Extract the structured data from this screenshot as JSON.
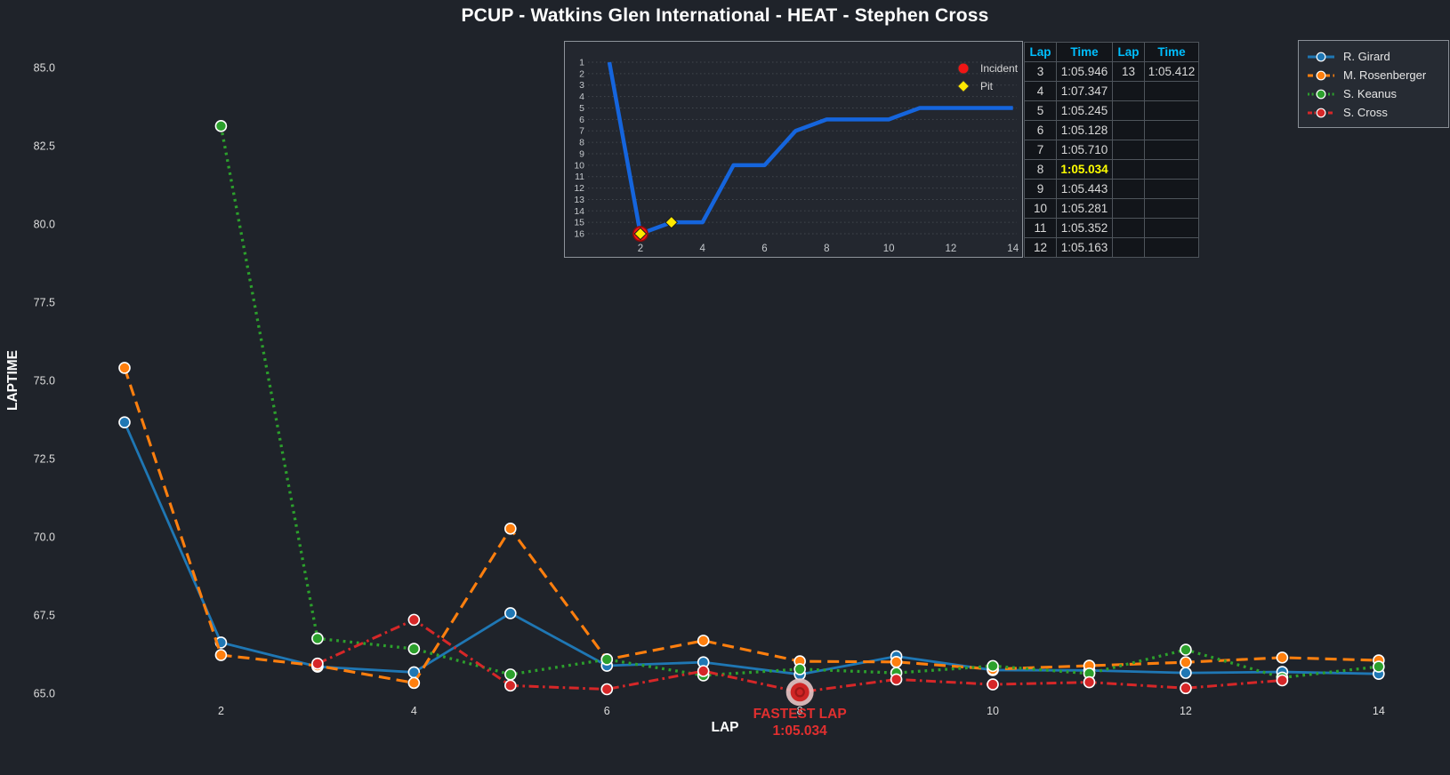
{
  "title": "PCUP - Watkins Glen International - HEAT - Stephen Cross",
  "colors": {
    "background": "#1f232a",
    "inset_background": "#23272f",
    "table_background": "#12151a",
    "header_accent": "#00bfff",
    "fastest_highlight": "#ffff00",
    "annotation_red": "#e12f2f",
    "position_line_blue": "#1565dd",
    "incident_red": "#f01515",
    "pit_yellow": "#ffe800"
  },
  "chart_data": [
    {
      "id": "laptimes",
      "type": "line",
      "title": "PCUP - Watkins Glen International - HEAT - Stephen Cross",
      "xlabel": "LAP",
      "ylabel": "LAPTIME",
      "x_ticks": [
        2,
        4,
        6,
        8,
        10,
        12,
        14
      ],
      "y_ticks": [
        65.0,
        67.5,
        70.0,
        72.5,
        75.0,
        77.5,
        80.0,
        82.5,
        85.0
      ],
      "xlim": [
        0.5,
        14.8
      ],
      "ylim": [
        64.3,
        85.7
      ],
      "grid": false,
      "legend_position": "outside upper right",
      "series": [
        {
          "name": "R. Girard",
          "color": "#1f77b4",
          "line_style": "solid",
          "marker": "circle",
          "x": [
            1,
            2,
            3,
            4,
            5,
            6,
            7,
            8,
            9,
            10,
            11,
            12,
            13,
            14
          ],
          "y": [
            73.66,
            66.62,
            65.85,
            65.67,
            67.56,
            65.88,
            65.99,
            65.6,
            66.18,
            65.74,
            65.73,
            65.65,
            65.68,
            65.62
          ]
        },
        {
          "name": "M. Rosenberger",
          "color": "#ff7f0e",
          "line_style": "dashed",
          "marker": "circle",
          "x": [
            1,
            2,
            3,
            4,
            5,
            6,
            7,
            8,
            9,
            10,
            11,
            12,
            13,
            14
          ],
          "y": [
            75.4,
            66.22,
            65.88,
            65.33,
            70.26,
            66.08,
            66.68,
            66.02,
            66.0,
            65.77,
            65.88,
            65.99,
            66.14,
            66.05
          ]
        },
        {
          "name": "S. Keanus",
          "color": "#2ca02c",
          "line_style": "dotted",
          "marker": "circle",
          "x": [
            2,
            3,
            4,
            5,
            6,
            7,
            8,
            9,
            10,
            11,
            12,
            13,
            14
          ],
          "y": [
            83.13,
            66.75,
            66.42,
            65.6,
            66.08,
            65.57,
            65.77,
            65.65,
            65.87,
            65.63,
            66.39,
            65.5,
            65.85
          ]
        },
        {
          "name": "S. Cross",
          "color": "#d62728",
          "line_style": "dashdot",
          "marker": "circle",
          "x": [
            3,
            4,
            5,
            6,
            7,
            8,
            9,
            10,
            11,
            12,
            13
          ],
          "y": [
            65.946,
            67.347,
            65.245,
            65.128,
            65.71,
            65.034,
            65.443,
            65.281,
            65.352,
            65.163,
            65.412
          ]
        }
      ],
      "fastest_lap": {
        "series": "S. Cross",
        "lap": 8,
        "laptime_s": 65.034,
        "label_line1": "FASTEST LAP",
        "label_line2": "1:05.034"
      }
    },
    {
      "id": "positions",
      "type": "line",
      "title": "",
      "xlabel": "",
      "ylabel": "",
      "x_ticks": [
        2,
        4,
        6,
        8,
        10,
        12,
        14
      ],
      "y_ticks": [
        1,
        2,
        3,
        4,
        5,
        6,
        7,
        8,
        9,
        10,
        11,
        12,
        13,
        14,
        15,
        16
      ],
      "y_inverted": true,
      "grid": true,
      "series": [
        {
          "name": "S. Cross position",
          "color": "#1565dd",
          "line_style": "solid",
          "marker": "none",
          "x": [
            1,
            2,
            3,
            4,
            5,
            6,
            7,
            8,
            9,
            10,
            11,
            12,
            13,
            14
          ],
          "y": [
            1,
            16,
            15,
            15,
            10,
            10,
            7,
            6,
            6,
            6,
            5,
            5,
            5,
            5
          ]
        }
      ],
      "incidents": [
        {
          "lap": 2,
          "position": 16
        }
      ],
      "pits": [
        {
          "lap": 2,
          "position": 16
        },
        {
          "lap": 3,
          "position": 15
        }
      ],
      "legend": [
        {
          "label": "Incident",
          "marker": "circle",
          "color": "#f01515"
        },
        {
          "label": "Pit",
          "marker": "diamond",
          "color": "#ffe800"
        }
      ]
    }
  ],
  "lap_table": {
    "headers": [
      "Lap",
      "Time",
      "Lap",
      "Time"
    ],
    "highlight_lap": "8",
    "rows": [
      [
        "3",
        "1:05.946",
        "13",
        "1:05.412"
      ],
      [
        "4",
        "1:07.347",
        "",
        ""
      ],
      [
        "5",
        "1:05.245",
        "",
        ""
      ],
      [
        "6",
        "1:05.128",
        "",
        ""
      ],
      [
        "7",
        "1:05.710",
        "",
        ""
      ],
      [
        "8",
        "1:05.034",
        "",
        ""
      ],
      [
        "9",
        "1:05.443",
        "",
        ""
      ],
      [
        "10",
        "1:05.281",
        "",
        ""
      ],
      [
        "11",
        "1:05.352",
        "",
        ""
      ],
      [
        "12",
        "1:05.163",
        "",
        ""
      ]
    ]
  },
  "driver_legend": {
    "items": [
      {
        "label": "R. Girard",
        "color": "#1f77b4",
        "line_style": "solid"
      },
      {
        "label": "M. Rosenberger",
        "color": "#ff7f0e",
        "line_style": "dashed"
      },
      {
        "label": "S. Keanus",
        "color": "#2ca02c",
        "line_style": "dotted"
      },
      {
        "label": "S. Cross",
        "color": "#d62728",
        "line_style": "dashdot"
      }
    ]
  }
}
